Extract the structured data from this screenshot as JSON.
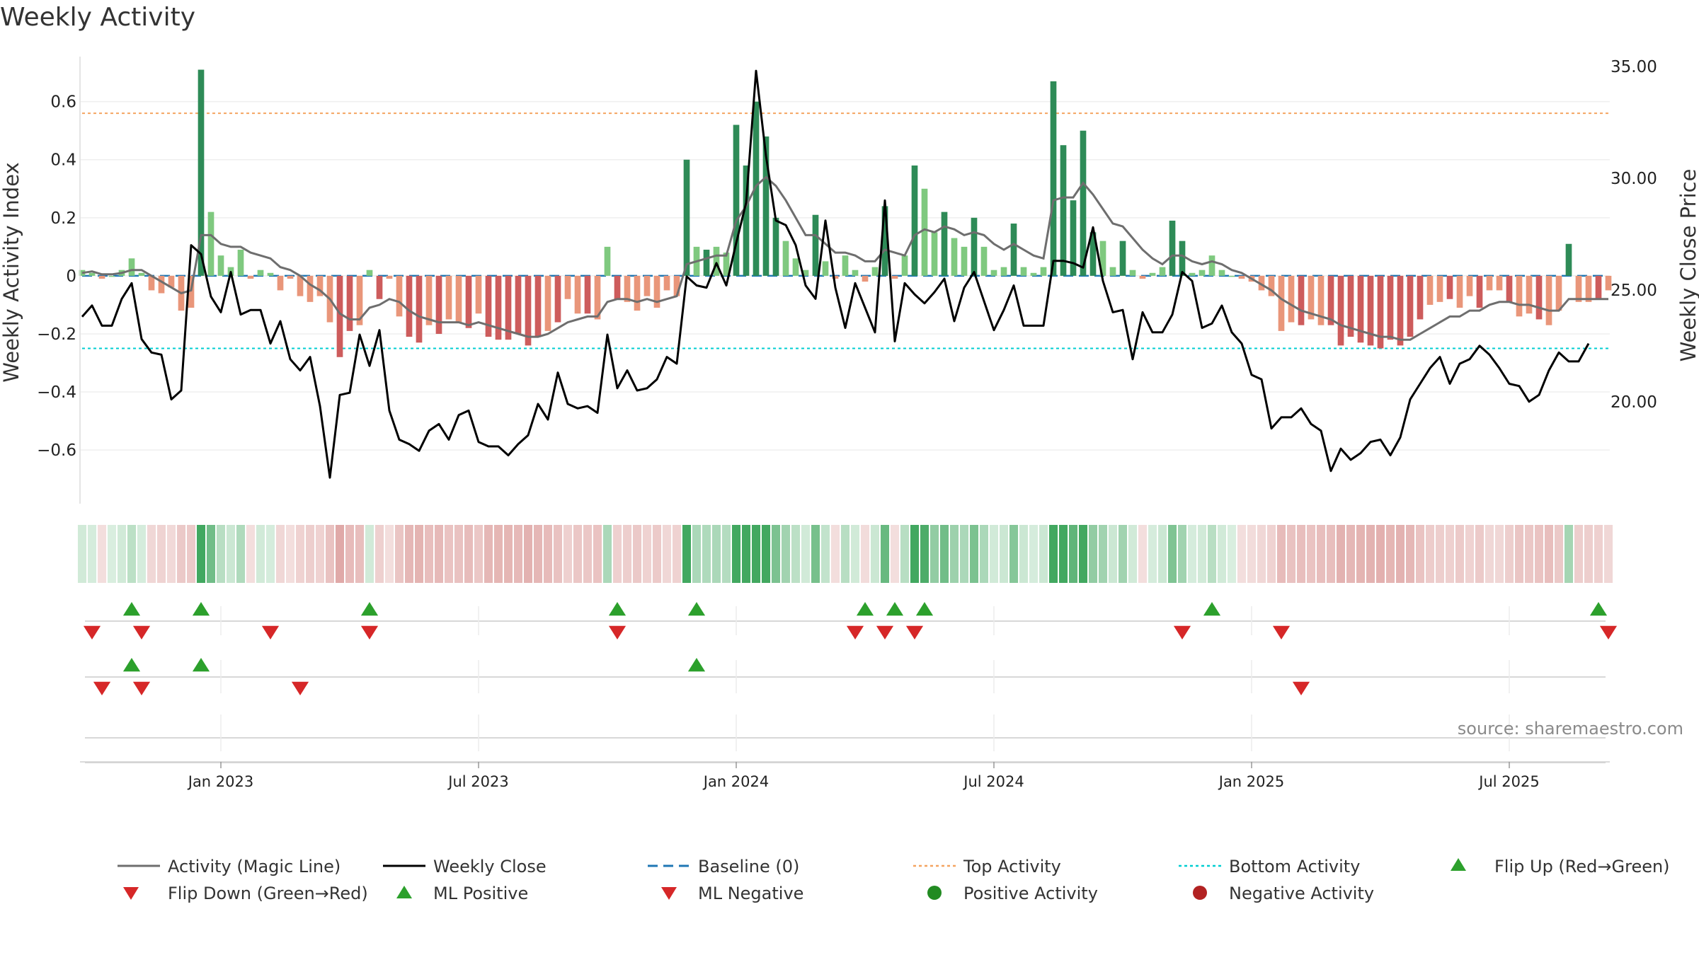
{
  "chart_data": {
    "type": "bar",
    "title": "Weekly Activity",
    "ylabel": "Weekly Activity Index",
    "y2label": "Weekly Close Price",
    "source": "source: sharemaestro.com",
    "ylim": [
      -0.78,
      0.76
    ],
    "y2lim": [
      15.5,
      35.5
    ],
    "yticks": [
      {
        "v": 0.6,
        "label": "0.6"
      },
      {
        "v": 0.4,
        "label": "0.4"
      },
      {
        "v": 0.2,
        "label": "0.2"
      },
      {
        "v": 0,
        "label": "0"
      },
      {
        "v": -0.2,
        "label": "−0.2"
      },
      {
        "v": -0.4,
        "label": "−0.4"
      },
      {
        "v": -0.6,
        "label": "−0.6"
      }
    ],
    "y2ticks": [
      {
        "v": 35,
        "label": "35.00"
      },
      {
        "v": 30,
        "label": "30.00"
      },
      {
        "v": 25,
        "label": "25.00"
      },
      {
        "v": 20,
        "label": "20.00"
      }
    ],
    "xticks": [
      {
        "i": 14,
        "label": "Jan 2023"
      },
      {
        "i": 40,
        "label": "Jul 2023"
      },
      {
        "i": 66,
        "label": "Jan 2024"
      },
      {
        "i": 92,
        "label": "Jul 2024"
      },
      {
        "i": 118,
        "label": "Jan 2025"
      },
      {
        "i": 144,
        "label": "Jul 2025"
      }
    ],
    "top_activity": 0.56,
    "bottom_activity": -0.25,
    "activity": [
      0.02,
      0.01,
      -0.01,
      0,
      0.02,
      0.06,
      0.01,
      -0.05,
      -0.06,
      -0.04,
      -0.12,
      -0.11,
      0.71,
      0.22,
      0.07,
      0.03,
      0.09,
      -0.01,
      0.02,
      0.01,
      -0.05,
      -0.01,
      -0.07,
      -0.09,
      -0.07,
      -0.16,
      -0.28,
      -0.19,
      -0.17,
      0.02,
      -0.08,
      -0.01,
      -0.14,
      -0.21,
      -0.23,
      -0.17,
      -0.2,
      -0.15,
      -0.16,
      -0.18,
      -0.13,
      -0.21,
      -0.22,
      -0.22,
      -0.2,
      -0.24,
      -0.21,
      -0.19,
      -0.16,
      -0.08,
      -0.13,
      -0.13,
      -0.15,
      0.1,
      -0.08,
      -0.09,
      -0.12,
      -0.07,
      -0.11,
      -0.05,
      -0.07,
      0.4,
      0.1,
      0.09,
      0.1,
      0.08,
      0.52,
      0.38,
      0.6,
      0.48,
      0.2,
      0.12,
      0.06,
      0.02,
      0.21,
      0.05,
      -0.01,
      0.07,
      0.02,
      -0.02,
      0.03,
      0.24,
      -0.01,
      0.07,
      0.38,
      0.3,
      0.15,
      0.22,
      0.13,
      0.1,
      0.2,
      0.1,
      0.02,
      0.03,
      0.18,
      0.03,
      0.01,
      0.03,
      0.67,
      0.45,
      0.26,
      0.5,
      0.15,
      0.12,
      0.03,
      0.12,
      0.02,
      -0.01,
      0.01,
      0.03,
      0.19,
      0.12,
      0.01,
      0.02,
      0.07,
      0.02,
      0.0,
      -0.01,
      -0.02,
      -0.05,
      -0.07,
      -0.19,
      -0.16,
      -0.17,
      -0.15,
      -0.17,
      -0.17,
      -0.24,
      -0.21,
      -0.23,
      -0.24,
      -0.25,
      -0.22,
      -0.24,
      -0.21,
      -0.15,
      -0.1,
      -0.09,
      -0.08,
      -0.11,
      -0.07,
      -0.11,
      -0.05,
      -0.05,
      -0.09,
      -0.14,
      -0.13,
      -0.15,
      -0.17,
      -0.12,
      0.11,
      -0.09,
      -0.09,
      -0.08,
      -0.05
    ],
    "magic_line": [
      0.01,
      0.015,
      0.005,
      0.005,
      0.01,
      0.02,
      0.02,
      0.0,
      -0.02,
      -0.04,
      -0.06,
      -0.05,
      0.14,
      0.14,
      0.11,
      0.1,
      0.1,
      0.08,
      0.07,
      0.06,
      0.03,
      0.02,
      0.0,
      -0.03,
      -0.05,
      -0.08,
      -0.13,
      -0.15,
      -0.15,
      -0.11,
      -0.1,
      -0.08,
      -0.09,
      -0.12,
      -0.14,
      -0.15,
      -0.16,
      -0.16,
      -0.16,
      -0.17,
      -0.16,
      -0.17,
      -0.18,
      -0.19,
      -0.2,
      -0.21,
      -0.21,
      -0.2,
      -0.18,
      -0.16,
      -0.15,
      -0.14,
      -0.14,
      -0.09,
      -0.08,
      -0.08,
      -0.09,
      -0.08,
      -0.09,
      -0.08,
      -0.07,
      0.04,
      0.05,
      0.06,
      0.07,
      0.07,
      0.19,
      0.24,
      0.31,
      0.34,
      0.31,
      0.26,
      0.2,
      0.14,
      0.14,
      0.11,
      0.08,
      0.08,
      0.07,
      0.05,
      0.05,
      0.09,
      0.08,
      0.07,
      0.14,
      0.16,
      0.15,
      0.17,
      0.16,
      0.14,
      0.15,
      0.14,
      0.11,
      0.09,
      0.11,
      0.09,
      0.07,
      0.06,
      0.26,
      0.27,
      0.27,
      0.32,
      0.28,
      0.23,
      0.18,
      0.17,
      0.13,
      0.09,
      0.06,
      0.04,
      0.07,
      0.07,
      0.05,
      0.04,
      0.05,
      0.04,
      0.02,
      0.01,
      -0.01,
      -0.03,
      -0.05,
      -0.08,
      -0.1,
      -0.12,
      -0.13,
      -0.14,
      -0.15,
      -0.17,
      -0.18,
      -0.19,
      -0.2,
      -0.21,
      -0.21,
      -0.22,
      -0.22,
      -0.2,
      -0.18,
      -0.16,
      -0.14,
      -0.14,
      -0.12,
      -0.12,
      -0.1,
      -0.09,
      -0.09,
      -0.1,
      -0.1,
      -0.11,
      -0.12,
      -0.12,
      -0.08,
      -0.08,
      -0.08,
      -0.08,
      -0.08
    ],
    "close": [
      23.8,
      24.3,
      23.4,
      23.4,
      24.6,
      25.3,
      22.8,
      22.2,
      22.1,
      20.1,
      20.5,
      27.0,
      26.6,
      24.7,
      24.0,
      25.8,
      23.9,
      24.1,
      24.1,
      22.6,
      23.6,
      21.9,
      21.4,
      22.0,
      19.8,
      16.6,
      20.3,
      20.4,
      23.0,
      21.6,
      23.2,
      19.6,
      18.3,
      18.1,
      17.8,
      18.7,
      19.0,
      18.3,
      19.4,
      19.6,
      18.2,
      18.0,
      18.0,
      17.6,
      18.1,
      18.5,
      19.9,
      19.2,
      21.3,
      19.9,
      19.7,
      19.8,
      19.5,
      23.0,
      20.6,
      21.4,
      20.5,
      20.6,
      21.0,
      22.0,
      21.7,
      25.6,
      25.2,
      25.1,
      26.2,
      25.2,
      27.1,
      28.9,
      34.8,
      31.0,
      28.1,
      27.9,
      27.0,
      25.2,
      24.6,
      28.1,
      25.1,
      23.3,
      25.3,
      24.2,
      23.1,
      29.0,
      22.7,
      25.3,
      24.8,
      24.4,
      24.9,
      25.5,
      23.6,
      25.1,
      25.8,
      24.5,
      23.2,
      24.1,
      25.2,
      23.4,
      23.4,
      23.4,
      26.3,
      26.3,
      26.2,
      26.0,
      27.8,
      25.4,
      24.0,
      24.1,
      21.9,
      24.0,
      23.1,
      23.1,
      23.9,
      25.8,
      25.4,
      23.3,
      23.5,
      24.3,
      23.1,
      22.6,
      21.2,
      21.0,
      18.8,
      19.3,
      19.3,
      19.7,
      19.0,
      18.7,
      16.9,
      17.9,
      17.4,
      17.7,
      18.2,
      18.3,
      17.6,
      18.4,
      20.1,
      20.8,
      21.5,
      22.0,
      20.8,
      21.7,
      21.9,
      22.5,
      22.1,
      21.5,
      20.8,
      20.7,
      20.0,
      20.3,
      21.4,
      22.2,
      21.8,
      21.8,
      22.6
    ],
    "flip_up": [
      5,
      12,
      29,
      54,
      62,
      79,
      82,
      85,
      114,
      153
    ],
    "flip_down": [
      1,
      6,
      19,
      29,
      54,
      78,
      81,
      84,
      111,
      121,
      154
    ],
    "ml_positive": [
      5,
      12,
      62
    ],
    "ml_negative": [
      2,
      6,
      22,
      123
    ],
    "legend": [
      "Activity (Magic Line)",
      "Weekly Close",
      "Baseline (0)",
      "Top Activity",
      "Bottom Activity",
      "Flip Up (Red→Green)",
      "Flip Down (Green→Red)",
      "ML Positive",
      "ML Negative",
      "Positive Activity",
      "Negative Activity"
    ],
    "colors": {
      "pos_strong": "#2e8b57",
      "pos_light": "#7fc97f",
      "neg_strong": "#cd5c5c",
      "neg_light": "#e9967a",
      "magic": "#6e6e6e",
      "close": "#000000",
      "baseline": "#1f77b4",
      "top": "#f4a460",
      "bottom": "#00ced1",
      "up_marker": "#2ca02c",
      "down_marker": "#d62728",
      "pos_dot": "#228b22",
      "neg_dot": "#b22222"
    }
  }
}
